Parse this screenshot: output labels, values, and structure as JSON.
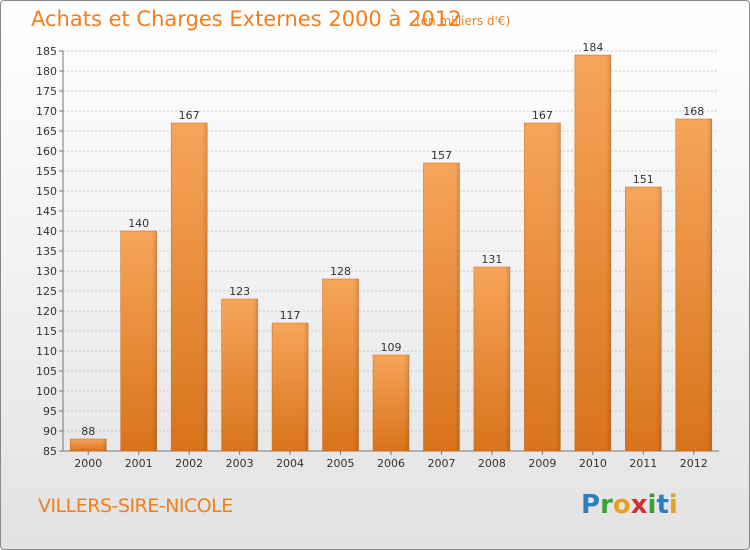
{
  "title": "Achats et Charges Externes 2000 à 2012",
  "unit_note": "(en milliers d'€)",
  "place_name": "VILLERS-SIRE-NICOLE",
  "logo": {
    "letters": [
      "P",
      "r",
      "o",
      "x",
      "i",
      "t",
      "i"
    ],
    "colors": [
      "#2a7fc1",
      "#3aa13a",
      "#e8a020",
      "#d03030",
      "#3aa13a",
      "#2a7fc1",
      "#e8a020"
    ]
  },
  "colors": {
    "accent": "#f07f1e",
    "bar_light": "#f6a354",
    "bar_dark": "#d9741c",
    "grid": "#c8c8c8"
  },
  "chart_data": {
    "type": "bar",
    "title": "Achats et Charges Externes 2000 à 2012",
    "subtitle": "(en milliers d'€)",
    "categories": [
      "2000",
      "2001",
      "2002",
      "2003",
      "2004",
      "2005",
      "2006",
      "2007",
      "2008",
      "2009",
      "2010",
      "2011",
      "2012"
    ],
    "values": [
      88,
      140,
      167,
      123,
      117,
      128,
      109,
      157,
      131,
      167,
      184,
      151,
      168
    ],
    "ylim": [
      85,
      185
    ],
    "yticks": [
      85,
      90,
      95,
      100,
      105,
      110,
      115,
      120,
      125,
      130,
      135,
      140,
      145,
      150,
      155,
      160,
      165,
      170,
      175,
      180,
      185
    ],
    "grid": true,
    "xlabel": "",
    "ylabel": ""
  }
}
